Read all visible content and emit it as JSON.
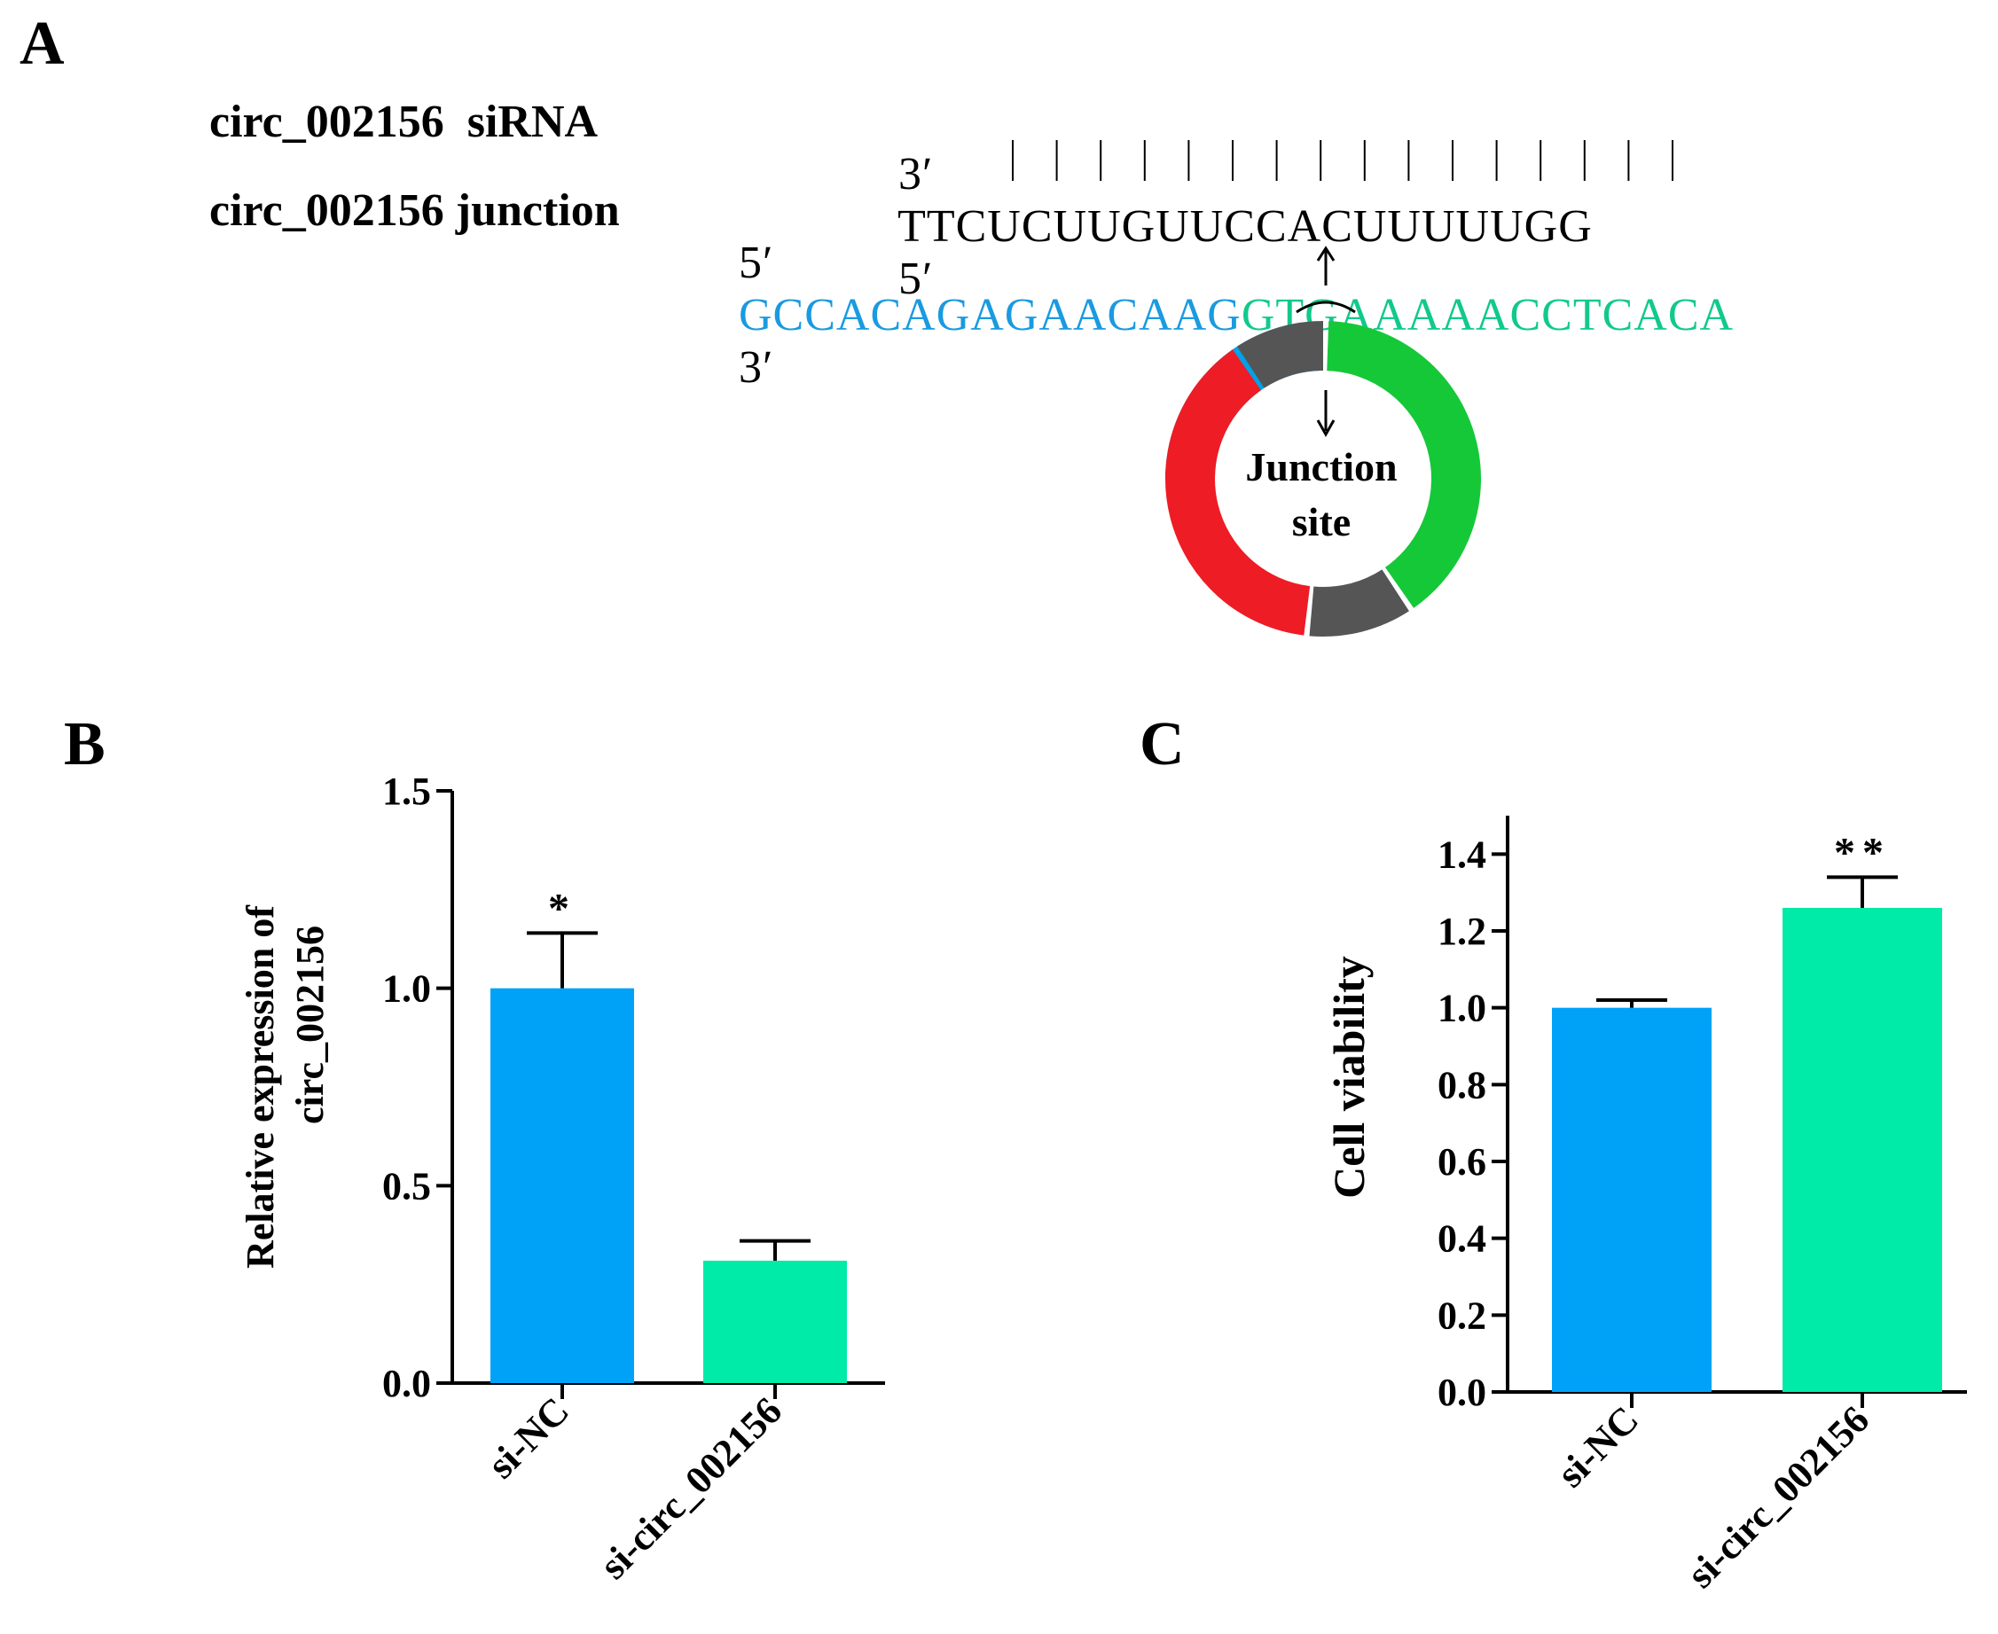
{
  "panels": {
    "a": "A",
    "b": "B",
    "c": "C"
  },
  "sequence": {
    "sirna_label": "circ_002156  siRNA",
    "junction_label": "circ_002156 junction",
    "sirna_prefix": "3′",
    "sirna_seq": "TTCUCUUGUUCCACUUUUUGG",
    "sirna_suffix": "5′",
    "junction_prefix": "5′",
    "junction_blue": "GCCACAGAGAACAAG",
    "junction_green": "GTGAAAAACCTCACA",
    "junction_suffix": "3′",
    "pair_count": 16
  },
  "circle": {
    "label_line1": "Junction",
    "label_line2": "site",
    "segments": [
      {
        "color": "#00a2e8",
        "from_deg": 270,
        "to_deg": 358
      },
      {
        "color": "#15c838",
        "from_deg": 2,
        "to_deg": 145
      },
      {
        "color": "#555555",
        "from_deg": 147,
        "to_deg": 185
      },
      {
        "color": "#ee1c25",
        "from_deg": 187,
        "to_deg": 325
      },
      {
        "color": "#555555",
        "from_deg": 327,
        "to_deg": 360
      }
    ]
  },
  "colors": {
    "blue_bar": "#00a2f8",
    "green_bar": "#00eaa8",
    "seq_blue": "#1a9ae0",
    "seq_green": "#11c98c"
  },
  "chart_data": [
    {
      "type": "bar",
      "panel": "B",
      "ylabel_line1": "Relative expression of",
      "ylabel_line2": "circ_002156",
      "categories": [
        "si-NC",
        "si-circ_002156"
      ],
      "values": [
        1.0,
        0.31
      ],
      "errors": [
        0.14,
        0.05
      ],
      "annotations": [
        "*",
        ""
      ],
      "ylim": [
        0,
        1.5
      ],
      "yticks": [
        "0.0",
        "0.5",
        "1.0",
        "1.5"
      ],
      "colors": [
        "#00a2f8",
        "#00eaa8"
      ]
    },
    {
      "type": "bar",
      "panel": "C",
      "ylabel": "Cell viability",
      "categories": [
        "si-NC",
        "si-circ_002156"
      ],
      "values": [
        1.0,
        1.26
      ],
      "errors": [
        0.02,
        0.08
      ],
      "annotations": [
        "",
        "**"
      ],
      "ylim": [
        0,
        1.5
      ],
      "yticks": [
        "0.0",
        "0.2",
        "0.4",
        "0.6",
        "0.8",
        "1.0",
        "1.2",
        "1.4"
      ],
      "colors": [
        "#00a2f8",
        "#00eaa8"
      ]
    }
  ]
}
